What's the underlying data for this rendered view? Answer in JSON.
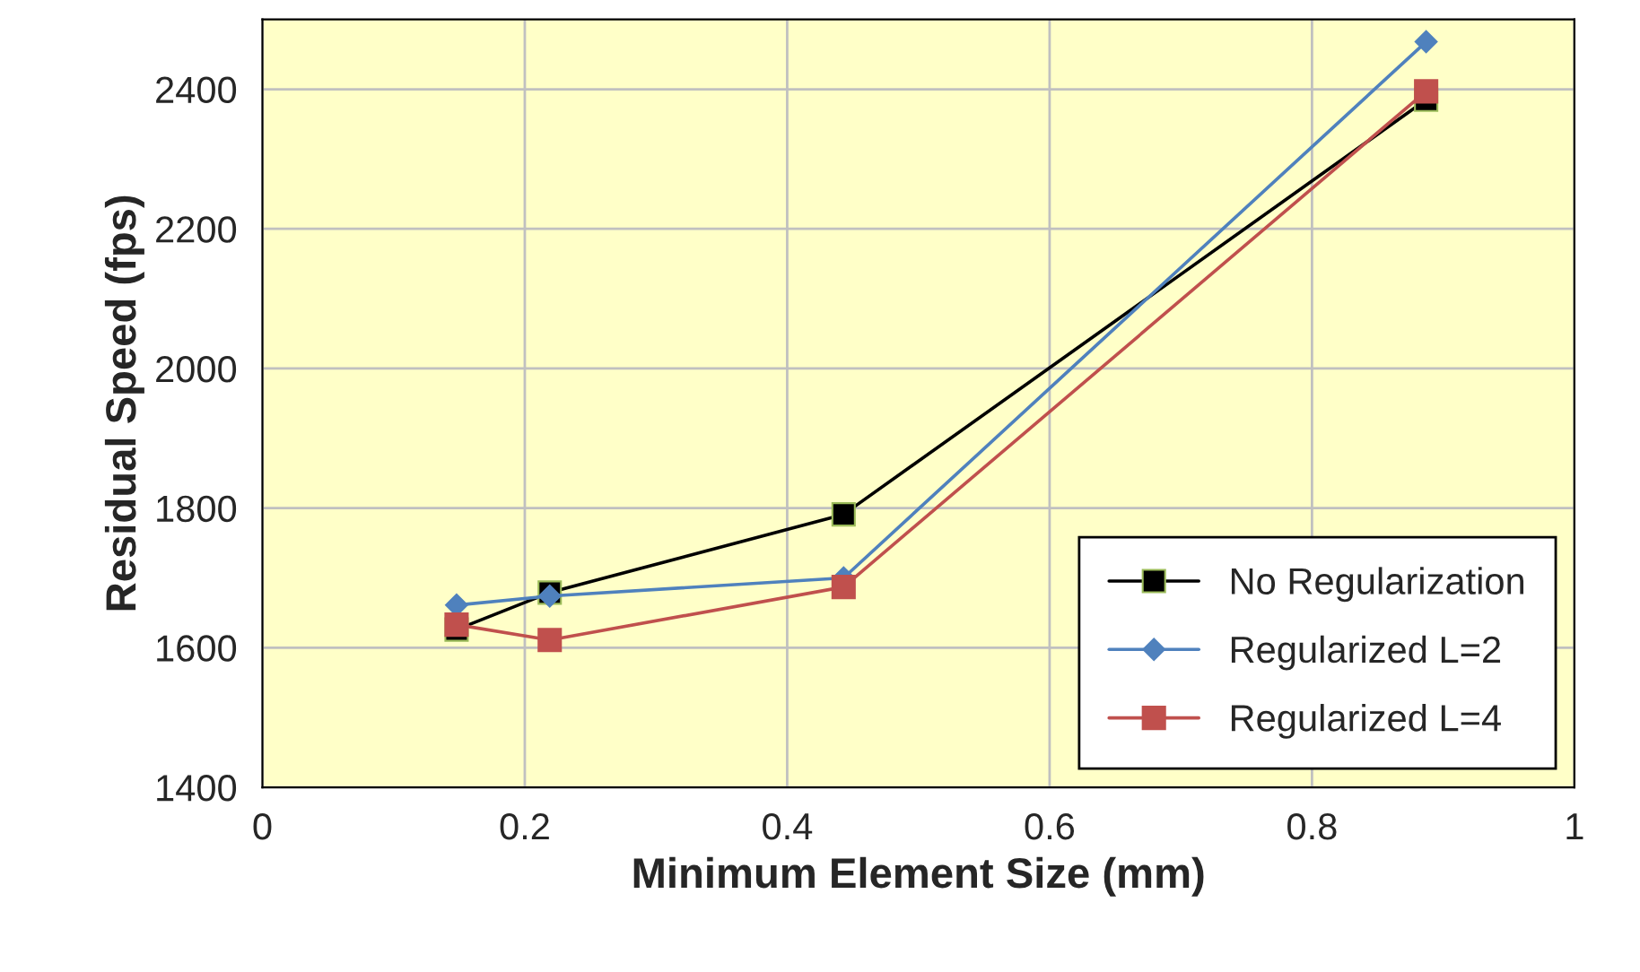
{
  "chart_data": {
    "type": "line",
    "xlabel": "Minimum Element Size (mm)",
    "ylabel": "Residual Speed (fps)",
    "xlim": [
      0,
      1
    ],
    "xticks": [
      0,
      0.2,
      0.4,
      0.6,
      0.8,
      1
    ],
    "ylim": [
      1400,
      2500
    ],
    "yticks": [
      1400,
      1600,
      1800,
      2000,
      2200,
      2400
    ],
    "grid": true,
    "legend": "bottom right",
    "line_style": "solid",
    "series": [
      {
        "name": "No Regularization",
        "color": "#000000",
        "marker": "square",
        "x": [
          0.148,
          0.219,
          0.443,
          0.887
        ],
        "values": [
          1626,
          1679,
          1791,
          2385
        ]
      },
      {
        "name": "Regularized L=2",
        "color": "#4f81bd",
        "marker": "diamond",
        "x": [
          0.148,
          0.219,
          0.443,
          0.887
        ],
        "values": [
          1661,
          1674,
          1700,
          2468
        ]
      },
      {
        "name": "Regularized L=4",
        "color": "#c0504d",
        "marker": "square",
        "x": [
          0.148,
          0.219,
          0.443,
          0.887
        ],
        "values": [
          1633,
          1611,
          1687,
          2397
        ]
      }
    ]
  }
}
